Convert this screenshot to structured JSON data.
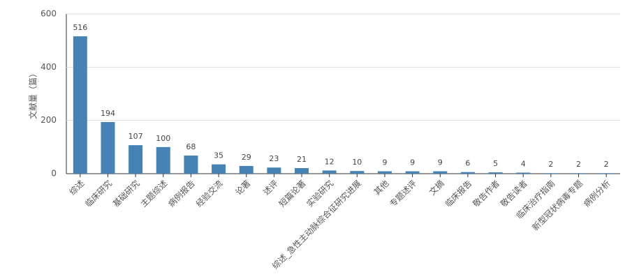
{
  "chart_data": {
    "type": "bar",
    "y_label": "文献量（篇）",
    "categories": [
      "综述",
      "临床研究",
      "基础研究",
      "主题综述",
      "病例报告",
      "经验交流",
      "论著",
      "述评",
      "短篇论著",
      "实验研究",
      "综述_急性主动脉综合征研究进展",
      "其他",
      "专题述评",
      "文摘",
      "临床报告",
      "敬告作者",
      "敬告读者",
      "临床治疗指南",
      "新型冠状病毒专题",
      "病例分析"
    ],
    "values": [
      516,
      194,
      107,
      100,
      68,
      35,
      29,
      23,
      21,
      12,
      10,
      9,
      9,
      9,
      6,
      5,
      4,
      2,
      2,
      2
    ],
    "color": "#4682b4",
    "ylim": [
      0,
      600
    ],
    "yticks": [
      0,
      200,
      400,
      600
    ],
    "grid": true
  }
}
